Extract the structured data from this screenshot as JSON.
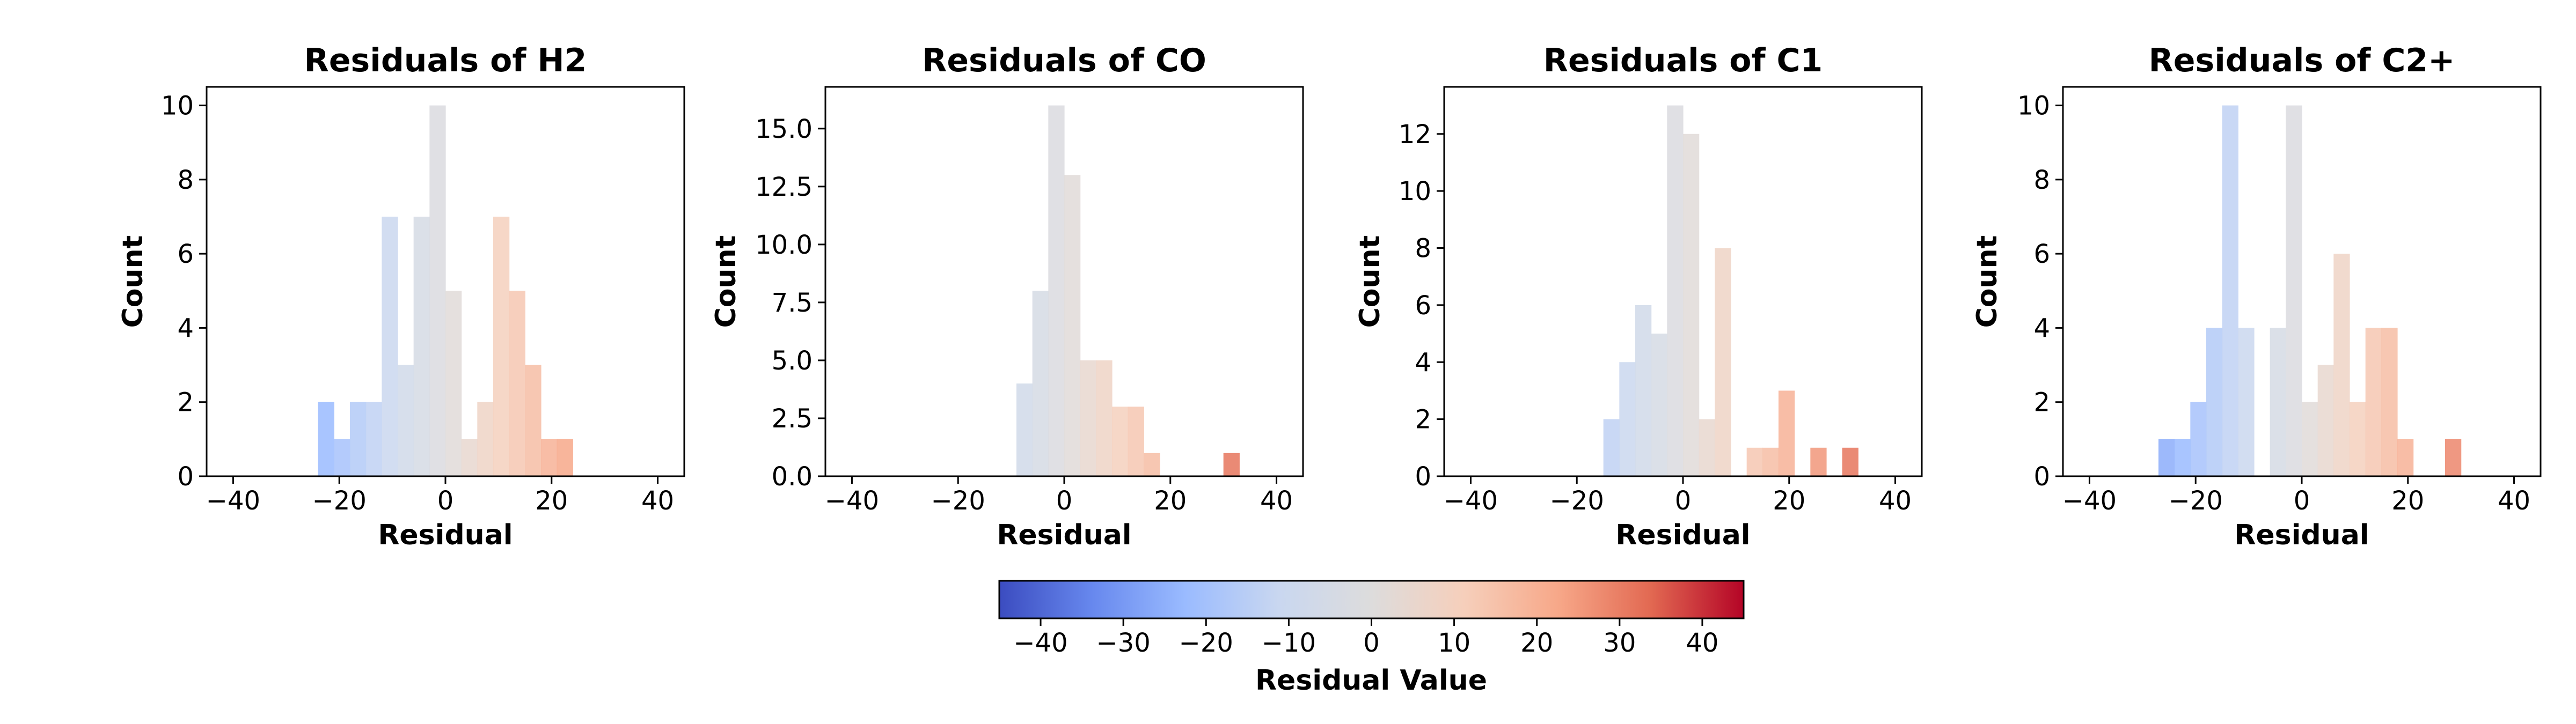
{
  "chart_data": [
    {
      "type": "bar",
      "title": "Residuals of H2",
      "xlabel": "Residual",
      "ylabel": "Count",
      "xlim": [
        -45,
        45
      ],
      "ylim": [
        0,
        10.5
      ],
      "xticks": [
        -40,
        -20,
        0,
        20,
        40
      ],
      "yticks": [
        0,
        2,
        4,
        6,
        8,
        10
      ],
      "ytick_labels": [
        "0",
        "2",
        "4",
        "6",
        "8",
        "10"
      ],
      "bins": [
        {
          "x0": -24.0,
          "x1": -21.0,
          "count": 2
        },
        {
          "x0": -21.0,
          "x1": -18.0,
          "count": 1
        },
        {
          "x0": -18.0,
          "x1": -15.0,
          "count": 2
        },
        {
          "x0": -15.0,
          "x1": -12.0,
          "count": 2
        },
        {
          "x0": -12.0,
          "x1": -9.0,
          "count": 7
        },
        {
          "x0": -9.0,
          "x1": -6.0,
          "count": 3
        },
        {
          "x0": -6.0,
          "x1": -3.0,
          "count": 7
        },
        {
          "x0": -3.0,
          "x1": 0.0,
          "count": 10
        },
        {
          "x0": 0.0,
          "x1": 3.0,
          "count": 5
        },
        {
          "x0": 3.0,
          "x1": 6.0,
          "count": 1
        },
        {
          "x0": 6.0,
          "x1": 9.0,
          "count": 2
        },
        {
          "x0": 9.0,
          "x1": 12.0,
          "count": 7
        },
        {
          "x0": 12.0,
          "x1": 15.0,
          "count": 5
        },
        {
          "x0": 15.0,
          "x1": 18.0,
          "count": 3
        },
        {
          "x0": 18.0,
          "x1": 21.0,
          "count": 1
        },
        {
          "x0": 21.0,
          "x1": 24.0,
          "count": 1
        }
      ]
    },
    {
      "type": "bar",
      "title": "Residuals of CO",
      "xlabel": "Residual",
      "ylabel": "Count",
      "xlim": [
        -45,
        45
      ],
      "ylim": [
        0,
        16.8
      ],
      "xticks": [
        -40,
        -20,
        0,
        20,
        40
      ],
      "yticks": [
        0,
        2.5,
        5,
        7.5,
        10,
        12.5,
        15
      ],
      "ytick_labels": [
        "0.0",
        "2.5",
        "5.0",
        "7.5",
        "10.0",
        "12.5",
        "15.0"
      ],
      "bins": [
        {
          "x0": -9.0,
          "x1": -6.0,
          "count": 4
        },
        {
          "x0": -6.0,
          "x1": -3.0,
          "count": 8
        },
        {
          "x0": -3.0,
          "x1": 0.0,
          "count": 16
        },
        {
          "x0": 0.0,
          "x1": 3.0,
          "count": 13
        },
        {
          "x0": 3.0,
          "x1": 6.0,
          "count": 5
        },
        {
          "x0": 6.0,
          "x1": 9.0,
          "count": 5
        },
        {
          "x0": 9.0,
          "x1": 12.0,
          "count": 3
        },
        {
          "x0": 12.0,
          "x1": 15.0,
          "count": 3
        },
        {
          "x0": 15.0,
          "x1": 18.0,
          "count": 1
        },
        {
          "x0": 30.0,
          "x1": 33.0,
          "count": 1
        }
      ]
    },
    {
      "type": "bar",
      "title": "Residuals of C1",
      "xlabel": "Residual",
      "ylabel": "Count",
      "xlim": [
        -45,
        45
      ],
      "ylim": [
        0,
        13.65
      ],
      "xticks": [
        -40,
        -20,
        0,
        20,
        40
      ],
      "yticks": [
        0,
        2,
        4,
        6,
        8,
        10,
        12
      ],
      "ytick_labels": [
        "0",
        "2",
        "4",
        "6",
        "8",
        "10",
        "12"
      ],
      "bins": [
        {
          "x0": -15.0,
          "x1": -12.0,
          "count": 2
        },
        {
          "x0": -12.0,
          "x1": -9.0,
          "count": 4
        },
        {
          "x0": -9.0,
          "x1": -6.0,
          "count": 6
        },
        {
          "x0": -6.0,
          "x1": -3.0,
          "count": 5
        },
        {
          "x0": -3.0,
          "x1": 0.0,
          "count": 13
        },
        {
          "x0": 0.0,
          "x1": 3.0,
          "count": 12
        },
        {
          "x0": 3.0,
          "x1": 6.0,
          "count": 2
        },
        {
          "x0": 6.0,
          "x1": 9.0,
          "count": 8
        },
        {
          "x0": 12.0,
          "x1": 15.0,
          "count": 1
        },
        {
          "x0": 15.0,
          "x1": 18.0,
          "count": 1
        },
        {
          "x0": 18.0,
          "x1": 21.0,
          "count": 3
        },
        {
          "x0": 24.0,
          "x1": 27.0,
          "count": 1
        },
        {
          "x0": 30.0,
          "x1": 33.0,
          "count": 1
        }
      ]
    },
    {
      "type": "bar",
      "title": "Residuals of C2+",
      "xlabel": "Residual",
      "ylabel": "Count",
      "xlim": [
        -45,
        45
      ],
      "ylim": [
        0,
        10.5
      ],
      "xticks": [
        -40,
        -20,
        0,
        20,
        40
      ],
      "yticks": [
        0,
        2,
        4,
        6,
        8,
        10
      ],
      "ytick_labels": [
        "0",
        "2",
        "4",
        "6",
        "8",
        "10"
      ],
      "bins": [
        {
          "x0": -27.0,
          "x1": -24.0,
          "count": 1
        },
        {
          "x0": -24.0,
          "x1": -21.0,
          "count": 1
        },
        {
          "x0": -21.0,
          "x1": -18.0,
          "count": 2
        },
        {
          "x0": -18.0,
          "x1": -15.0,
          "count": 4
        },
        {
          "x0": -15.0,
          "x1": -12.0,
          "count": 10
        },
        {
          "x0": -12.0,
          "x1": -9.0,
          "count": 4
        },
        {
          "x0": -6.0,
          "x1": -3.0,
          "count": 4
        },
        {
          "x0": -3.0,
          "x1": 0.0,
          "count": 10
        },
        {
          "x0": 0.0,
          "x1": 3.0,
          "count": 2
        },
        {
          "x0": 3.0,
          "x1": 6.0,
          "count": 3
        },
        {
          "x0": 6.0,
          "x1": 9.0,
          "count": 6
        },
        {
          "x0": 9.0,
          "x1": 12.0,
          "count": 2
        },
        {
          "x0": 12.0,
          "x1": 15.0,
          "count": 4
        },
        {
          "x0": 15.0,
          "x1": 18.0,
          "count": 4
        },
        {
          "x0": 18.0,
          "x1": 21.0,
          "count": 1
        },
        {
          "x0": 27.0,
          "x1": 30.0,
          "count": 1
        }
      ]
    }
  ],
  "colorbar": {
    "label": "Residual Value",
    "range": [
      -45,
      45
    ],
    "ticks": [
      -40,
      -30,
      -20,
      -10,
      0,
      10,
      20,
      30,
      40
    ],
    "colormap": [
      "#3b4cc0",
      "#6788ee",
      "#9abbff",
      "#c9d7f0",
      "#dddcdc",
      "#f6cfbb",
      "#f7a889",
      "#e26952",
      "#b40426"
    ],
    "orientation": "horizontal"
  }
}
